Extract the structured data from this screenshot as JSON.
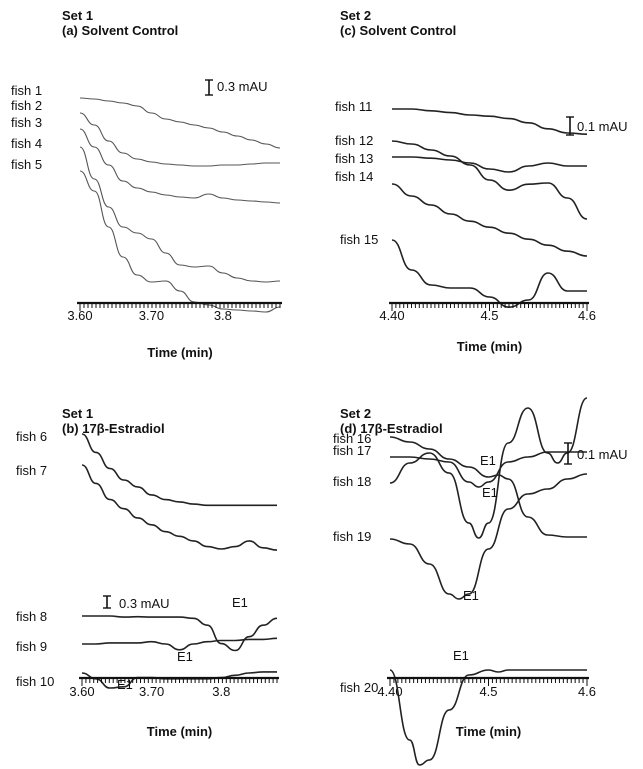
{
  "chart_data": [
    {
      "id": "a",
      "type": "line",
      "title": "Set 1",
      "subtitle": "(a) Solvent Control",
      "xlabel": "Time (min)",
      "xlim": [
        3.6,
        3.88
      ],
      "x_tick_labels": [
        {
          "value": 3.6,
          "label": "3.60"
        },
        {
          "value": 3.7,
          "label": "3.70"
        },
        {
          "value": 3.8,
          "label": "3.8"
        }
      ],
      "scale_bar": "0.3 mAU",
      "series": [
        {
          "name": "fish 1",
          "x": [
            3.6,
            3.62,
            3.64,
            3.66,
            3.68,
            3.7,
            3.72,
            3.74,
            3.76,
            3.78,
            3.8,
            3.82,
            3.84,
            3.86,
            3.88
          ],
          "y": [
            0,
            0.05,
            0.15,
            0.25,
            0.4,
            0.75,
            1.05,
            1.2,
            1.35,
            1.5,
            1.7,
            1.9,
            2.1,
            2.3,
            2.5
          ]
        },
        {
          "name": "fish 2",
          "x": [
            3.6,
            3.62,
            3.64,
            3.66,
            3.68,
            3.7,
            3.72,
            3.74,
            3.76,
            3.78,
            3.8,
            3.82,
            3.84,
            3.86,
            3.88
          ],
          "y": [
            0,
            0.6,
            1.4,
            2.0,
            2.3,
            2.45,
            2.55,
            2.6,
            2.65,
            2.65,
            2.6,
            2.6,
            2.55,
            2.5,
            2.5
          ]
        },
        {
          "name": "fish 3",
          "x": [
            3.6,
            3.62,
            3.64,
            3.66,
            3.68,
            3.7,
            3.72,
            3.74,
            3.76,
            3.78,
            3.8,
            3.82,
            3.84,
            3.86,
            3.88
          ],
          "y": [
            0,
            0.9,
            1.8,
            2.6,
            2.95,
            3.15,
            3.3,
            3.4,
            3.45,
            3.25,
            3.45,
            3.55,
            3.6,
            3.65,
            3.7
          ]
        },
        {
          "name": "fish 4",
          "x": [
            3.6,
            3.62,
            3.64,
            3.66,
            3.68,
            3.7,
            3.72,
            3.74,
            3.76,
            3.78,
            3.8,
            3.82,
            3.84,
            3.86,
            3.88
          ],
          "y": [
            0,
            1.6,
            3.0,
            4.0,
            4.3,
            4.6,
            5.3,
            5.9,
            6.0,
            5.95,
            6.3,
            6.55,
            6.7,
            6.75,
            6.7
          ]
        },
        {
          "name": "fish 5",
          "x": [
            3.6,
            3.62,
            3.64,
            3.66,
            3.68,
            3.7,
            3.72,
            3.74,
            3.76,
            3.78,
            3.8,
            3.82,
            3.84,
            3.86,
            3.88
          ],
          "y": [
            0,
            1.0,
            2.8,
            4.3,
            5.2,
            5.55,
            5.5,
            6.0,
            6.55,
            6.7,
            6.9,
            6.95,
            7.0,
            7.05,
            6.8
          ]
        }
      ]
    },
    {
      "id": "c",
      "type": "line",
      "title": "Set 2",
      "subtitle": "(c) Solvent Control",
      "xlabel": "Time (min)",
      "xlim": [
        4.4,
        4.6
      ],
      "x_tick_labels": [
        {
          "value": 4.4,
          "label": "4.40"
        },
        {
          "value": 4.5,
          "label": "4.5"
        },
        {
          "value": 4.6,
          "label": "4.6"
        }
      ],
      "scale_bar": "0.1 mAU",
      "series": [
        {
          "name": "fish 11",
          "x": [
            4.4,
            4.42,
            4.44,
            4.46,
            4.48,
            4.5,
            4.52,
            4.54,
            4.56,
            4.58,
            4.6
          ],
          "y": [
            0,
            0,
            0.03,
            0.06,
            0.1,
            0.12,
            0.16,
            0.23,
            0.33,
            0.4,
            0.42
          ]
        },
        {
          "name": "fish 12",
          "x": [
            4.4,
            4.42,
            4.44,
            4.46,
            4.48,
            4.5,
            4.52,
            4.54,
            4.56,
            4.58,
            4.6
          ],
          "y": [
            0,
            0.05,
            0.15,
            0.25,
            0.4,
            0.65,
            0.82,
            0.72,
            0.7,
            0.95,
            1.3
          ]
        },
        {
          "name": "fish 13",
          "x": [
            4.4,
            4.42,
            4.44,
            4.46,
            4.48,
            4.5,
            4.52,
            4.54,
            4.56,
            4.58,
            4.6
          ],
          "y": [
            0,
            0,
            0.02,
            0.05,
            0.1,
            0.2,
            0.25,
            0.15,
            0.1,
            0.15,
            0.15
          ]
        },
        {
          "name": "fish 14",
          "x": [
            4.4,
            4.42,
            4.44,
            4.46,
            4.48,
            4.5,
            4.52,
            4.54,
            4.56,
            4.58,
            4.6
          ],
          "y": [
            0,
            0.2,
            0.35,
            0.5,
            0.62,
            0.72,
            0.82,
            0.92,
            1.02,
            1.12,
            1.2
          ]
        },
        {
          "name": "fish 15",
          "x": [
            4.4,
            4.42,
            4.44,
            4.46,
            4.48,
            4.5,
            4.52,
            4.54,
            4.56,
            4.58,
            4.6
          ],
          "y": [
            0,
            0.5,
            0.75,
            0.8,
            0.8,
            0.95,
            1.12,
            1.0,
            0.55,
            0.85,
            0.85
          ]
        }
      ]
    },
    {
      "id": "b",
      "type": "line",
      "title": "Set 1",
      "subtitle": "(b) 17β-Estradiol",
      "xlabel": "Time (min)",
      "xlim": [
        3.6,
        3.88
      ],
      "x_tick_labels": [
        {
          "value": 3.6,
          "label": "3.60"
        },
        {
          "value": 3.7,
          "label": "3.70"
        },
        {
          "value": 3.8,
          "label": "3.8"
        }
      ],
      "scale_bar": "0.3 mAU",
      "annotation": "E1",
      "series": [
        {
          "name": "fish 6",
          "x": [
            3.6,
            3.62,
            3.64,
            3.66,
            3.68,
            3.7,
            3.72,
            3.74,
            3.76,
            3.78,
            3.8,
            3.82,
            3.84,
            3.86,
            3.88
          ],
          "y": [
            0,
            0.8,
            1.5,
            2.0,
            2.3,
            2.65,
            2.85,
            2.95,
            3.05,
            3.1,
            3.1,
            3.1,
            3.1,
            3.1,
            3.1
          ]
        },
        {
          "name": "fish 7",
          "x": [
            3.6,
            3.62,
            3.64,
            3.66,
            3.68,
            3.7,
            3.72,
            3.74,
            3.76,
            3.78,
            3.8,
            3.82,
            3.84,
            3.86,
            3.88
          ],
          "y": [
            0,
            0.8,
            1.5,
            1.9,
            2.3,
            2.6,
            2.9,
            3.1,
            3.3,
            3.55,
            3.65,
            3.55,
            3.3,
            3.6,
            3.7
          ]
        },
        {
          "name": "fish 8",
          "x": [
            3.6,
            3.62,
            3.64,
            3.66,
            3.68,
            3.7,
            3.72,
            3.74,
            3.76,
            3.78,
            3.8,
            3.82,
            3.84,
            3.86,
            3.88
          ],
          "y": [
            0,
            0,
            0,
            0.05,
            0.03,
            0.05,
            0.05,
            0.05,
            0.1,
            0.4,
            1.2,
            1.5,
            0.9,
            0.4,
            0.1
          ]
        },
        {
          "name": "fish 9",
          "x": [
            3.6,
            3.62,
            3.64,
            3.66,
            3.68,
            3.7,
            3.72,
            3.74,
            3.76,
            3.78,
            3.8,
            3.82,
            3.84,
            3.86,
            3.88
          ],
          "y": [
            0,
            0,
            -0.05,
            -0.05,
            -0.05,
            -0.1,
            0.0,
            0.25,
            0.0,
            -0.1,
            -0.15,
            -0.15,
            -0.2,
            -0.2,
            -0.25
          ]
        },
        {
          "name": "fish 10",
          "x": [
            3.6,
            3.62,
            3.64,
            3.66,
            3.68,
            3.7,
            3.72,
            3.74,
            3.76,
            3.78,
            3.8,
            3.82,
            3.84,
            3.86,
            3.88
          ],
          "y": [
            0,
            0.25,
            0.65,
            0.6,
            0.2,
            0.2,
            0.25,
            0.25,
            0.25,
            0.25,
            0.2,
            0.1,
            0.0,
            -0.05,
            -0.05
          ]
        }
      ]
    },
    {
      "id": "d",
      "type": "line",
      "title": "Set 2",
      "subtitle": "(d) 17β-Estradiol",
      "xlabel": "Time (min)",
      "xlim": [
        4.4,
        4.6
      ],
      "x_tick_labels": [
        {
          "value": 4.4,
          "label": "4.40"
        },
        {
          "value": 4.5,
          "label": "4.5"
        },
        {
          "value": 4.6,
          "label": "4.6"
        }
      ],
      "scale_bar": "0.1 mAU",
      "annotation": "E1",
      "series": [
        {
          "name": "fish 16",
          "x": [
            4.4,
            4.42,
            4.44,
            4.46,
            4.48,
            4.5,
            4.51,
            4.52,
            4.54,
            4.56,
            4.58,
            4.6
          ],
          "y": [
            0,
            0.05,
            0.12,
            0.22,
            0.3,
            0.4,
            0.38,
            0.42,
            0.8,
            0.98,
            1.0,
            1.0
          ]
        },
        {
          "name": "fish 17",
          "x": [
            4.4,
            4.42,
            4.44,
            4.46,
            4.48,
            4.49,
            4.5,
            4.52,
            4.54,
            4.56,
            4.58,
            4.6
          ],
          "y": [
            0,
            0,
            0.02,
            0.05,
            0.25,
            0.3,
            0.25,
            0.05,
            0,
            -0.05,
            -0.05,
            -0.05
          ]
        },
        {
          "name": "fish 18",
          "x": [
            4.4,
            4.42,
            4.44,
            4.46,
            4.48,
            4.49,
            4.5,
            4.52,
            4.54,
            4.56,
            4.57,
            4.58,
            4.6
          ],
          "y": [
            0,
            -0.2,
            -0.3,
            -0.1,
            0.4,
            0.55,
            0.4,
            -0.4,
            -0.75,
            -0.3,
            -0.2,
            -0.3,
            -0.85
          ]
        },
        {
          "name": "fish 19",
          "x": [
            4.4,
            4.42,
            4.44,
            4.46,
            4.47,
            4.48,
            4.5,
            4.52,
            4.54,
            4.56,
            4.58,
            4.6
          ],
          "y": [
            0,
            0.05,
            0.25,
            0.55,
            0.6,
            0.55,
            0.1,
            -0.3,
            -0.45,
            -0.5,
            -0.6,
            -0.65
          ]
        },
        {
          "name": "fish 20",
          "x": [
            4.4,
            4.42,
            4.43,
            4.44,
            4.46,
            4.48,
            4.5,
            4.51,
            4.52,
            4.54,
            4.56,
            4.58,
            4.6
          ],
          "y": [
            0,
            0.7,
            0.95,
            0.9,
            0.4,
            0.05,
            0,
            0.02,
            0,
            0,
            0,
            0,
            0
          ]
        }
      ]
    }
  ]
}
